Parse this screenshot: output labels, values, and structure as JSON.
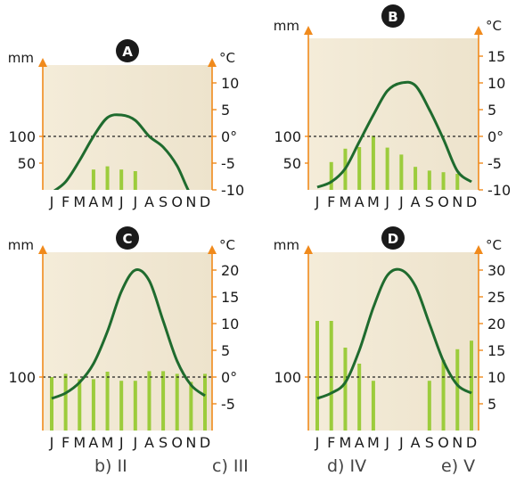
{
  "answer_options": [
    "b) II",
    "c) III",
    "d) IV",
    "e) V"
  ],
  "colors": {
    "temperature_line": "#1f6b2e",
    "precipitation_bar": "#9ccc3c",
    "axis": "#f08a1c",
    "plot_bg": "#ede3cc",
    "badge": "#1a1a1a"
  },
  "chart_data": [
    {
      "type": "bar",
      "title": "A",
      "precip_unit": "mm",
      "temp_unit": "°C",
      "categories": [
        "J",
        "F",
        "M",
        "A",
        "M",
        "J",
        "J",
        "A",
        "S",
        "O",
        "N",
        "D"
      ],
      "precip_ticks": [
        "100",
        "50"
      ],
      "precip_tick_values": [
        100,
        50
      ],
      "precip_range": [
        20,
        210
      ],
      "temp_ticks": [
        "10",
        "5",
        "0°",
        "-5",
        "-10"
      ],
      "temp_tick_values": [
        10,
        5,
        0,
        -5,
        -10
      ],
      "temp_range": [
        -10,
        13
      ],
      "series": [
        {
          "kind": "precipitation",
          "values": [
            null,
            null,
            null,
            38,
            44,
            38,
            35,
            null,
            null,
            null,
            null,
            null
          ]
        },
        {
          "kind": "temperature",
          "values": [
            -10.5,
            -8.5,
            -4.5,
            0,
            3.5,
            4,
            3,
            0,
            -2,
            -5.5,
            -11,
            -13
          ]
        }
      ],
      "grid": false
    },
    {
      "type": "bar",
      "title": "B",
      "precip_unit": "mm",
      "temp_unit": "°C",
      "categories": [
        "J",
        "F",
        "M",
        "A",
        "M",
        "J",
        "J",
        "A",
        "S",
        "O",
        "N",
        "D"
      ],
      "precip_ticks": [
        "100",
        "50"
      ],
      "precip_tick_values": [
        100,
        50
      ],
      "precip_range": [
        20,
        210
      ],
      "temp_ticks": [
        "15",
        "10",
        "5",
        "0°",
        "-5",
        "-10"
      ],
      "temp_tick_values": [
        15,
        10,
        5,
        0,
        -5,
        -10
      ],
      "temp_range": [
        -10,
        18
      ],
      "series": [
        {
          "kind": "precipitation",
          "values": [
            null,
            52,
            77,
            80,
            101,
            79,
            66,
            43,
            36,
            33,
            30,
            null
          ]
        },
        {
          "kind": "temperature",
          "values": [
            -9.5,
            -8.5,
            -6,
            -1,
            4,
            8.5,
            10,
            9.5,
            5,
            -0.5,
            -6.5,
            -8.5
          ]
        }
      ],
      "grid": false
    },
    {
      "type": "bar",
      "title": "C",
      "precip_unit": "mm",
      "temp_unit": "°C",
      "categories": [
        "J",
        "F",
        "M",
        "A",
        "M",
        "J",
        "J",
        "A",
        "S",
        "O",
        "N",
        "D"
      ],
      "precip_ticks": [
        "100"
      ],
      "precip_tick_values": [
        100
      ],
      "precip_range": [
        35,
        220
      ],
      "temp_ticks": [
        "20",
        "15",
        "10",
        "5",
        "0°",
        "-5"
      ],
      "temp_tick_values": [
        20,
        15,
        10,
        5,
        0,
        -5
      ],
      "temp_range": [
        -9,
        23
      ],
      "series": [
        {
          "kind": "precipitation",
          "values": [
            100,
            106,
            96,
            96,
            110,
            93,
            93,
            111,
            111,
            106,
            91,
            106
          ]
        },
        {
          "kind": "temperature",
          "values": [
            -4,
            -3,
            -1,
            2.5,
            8.5,
            16,
            20,
            18,
            10.5,
            3,
            -1.5,
            -3.5
          ]
        }
      ],
      "grid": false
    },
    {
      "type": "bar",
      "title": "D",
      "precip_unit": "mm",
      "temp_unit": "°C",
      "categories": [
        "J",
        "F",
        "M",
        "A",
        "M",
        "J",
        "J",
        "A",
        "S",
        "O",
        "N",
        "D"
      ],
      "precip_ticks": [
        "100"
      ],
      "precip_tick_values": [
        100
      ],
      "precip_range": [
        35,
        220
      ],
      "temp_ticks": [
        "30",
        "25",
        "20",
        "15",
        "10",
        "5"
      ],
      "temp_tick_values": [
        30,
        25,
        20,
        15,
        10,
        5
      ],
      "temp_range": [
        -1,
        33
      ],
      "series": [
        {
          "kind": "precipitation",
          "values": [
            205,
            205,
            155,
            125,
            93,
            null,
            null,
            null,
            93,
            132,
            152,
            168
          ]
        },
        {
          "kind": "temperature",
          "values": [
            6,
            7,
            9,
            15,
            23,
            29,
            30,
            27,
            20,
            13,
            8.5,
            7
          ]
        }
      ],
      "grid": false
    }
  ]
}
